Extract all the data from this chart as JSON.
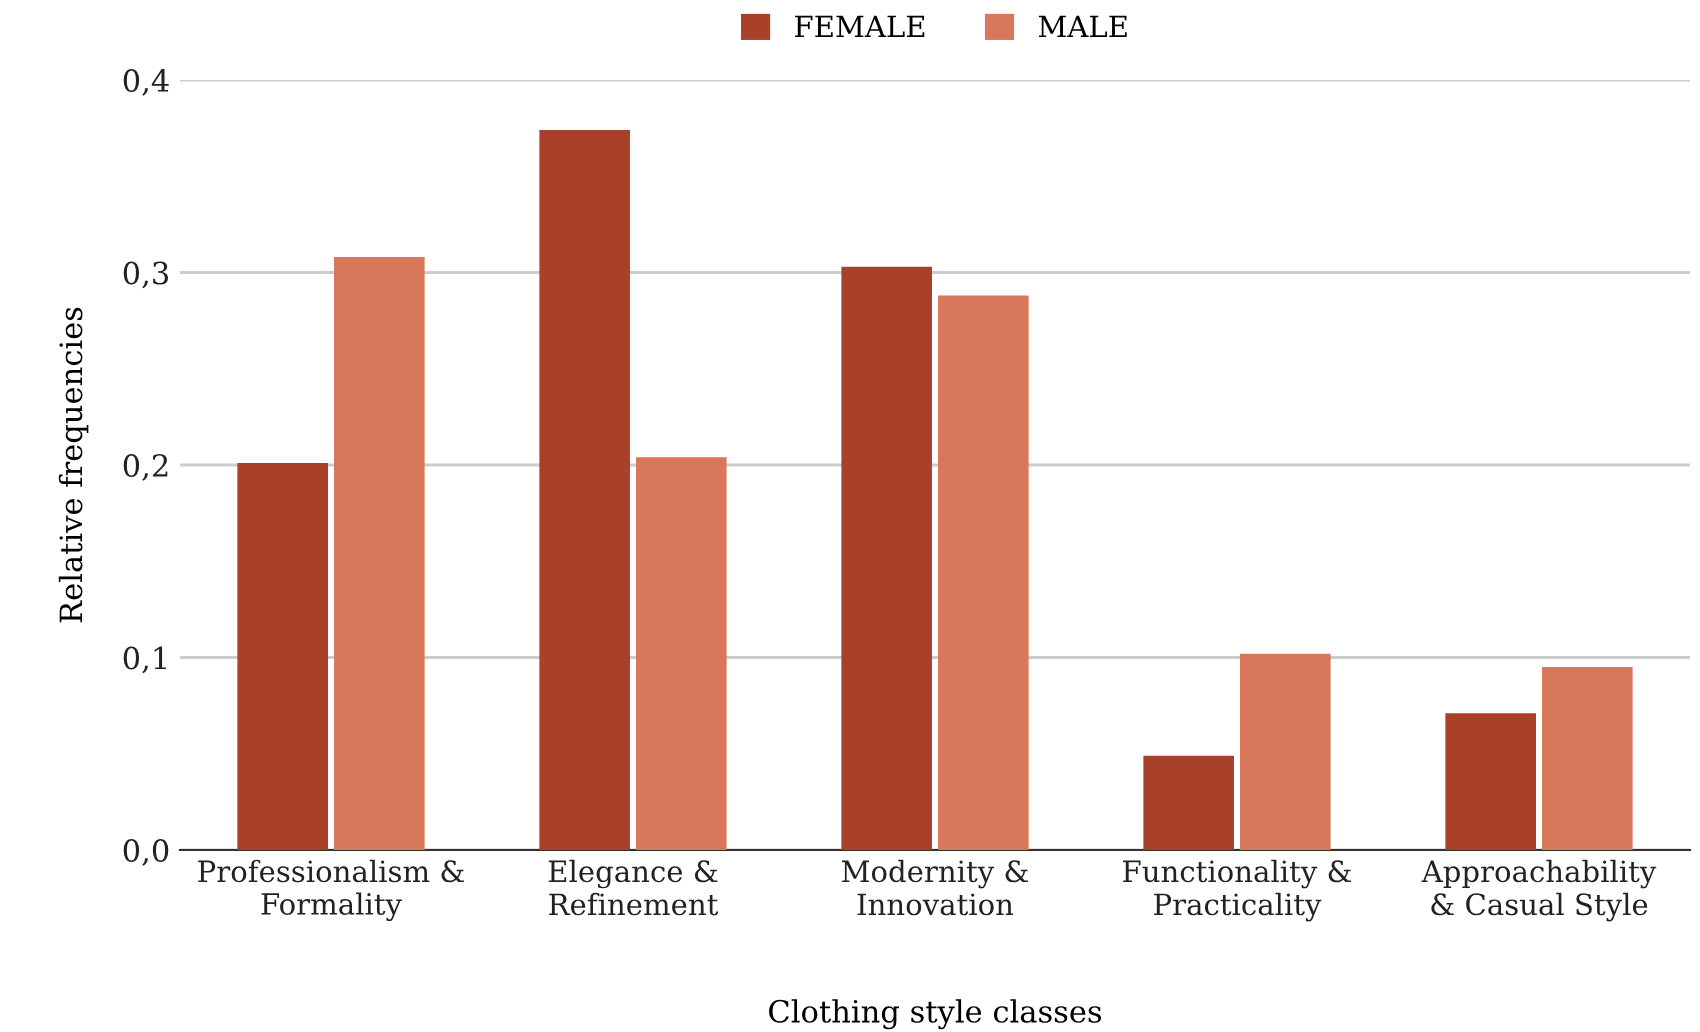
{
  "chart_data": {
    "type": "bar",
    "xlabel": "Clothing style classes",
    "ylabel": "Relative frequencies",
    "categories": [
      "Professionalism &\nFormality",
      "Elegance &\nRefinement",
      "Modernity &\nInnovation",
      "Functionality &\nPracticality",
      "Approachability\n& Casual Style"
    ],
    "series": [
      {
        "name": "FEMALE",
        "color": "#a9402a",
        "values": [
          0.201,
          0.374,
          0.303,
          0.049,
          0.071
        ]
      },
      {
        "name": "MALE",
        "color": "#d9775a",
        "values": [
          0.308,
          0.204,
          0.288,
          0.102,
          0.095
        ]
      }
    ],
    "ylim": [
      0,
      0.4
    ],
    "yticks": [
      {
        "value": 0,
        "label": "0,0"
      },
      {
        "value": 0.1,
        "label": "0,1"
      },
      {
        "value": 0.2,
        "label": "0,2"
      },
      {
        "value": 0.3,
        "label": "0,3"
      },
      {
        "value": 0.4,
        "label": "0,4"
      }
    ],
    "grid": "y",
    "legend": "top"
  }
}
